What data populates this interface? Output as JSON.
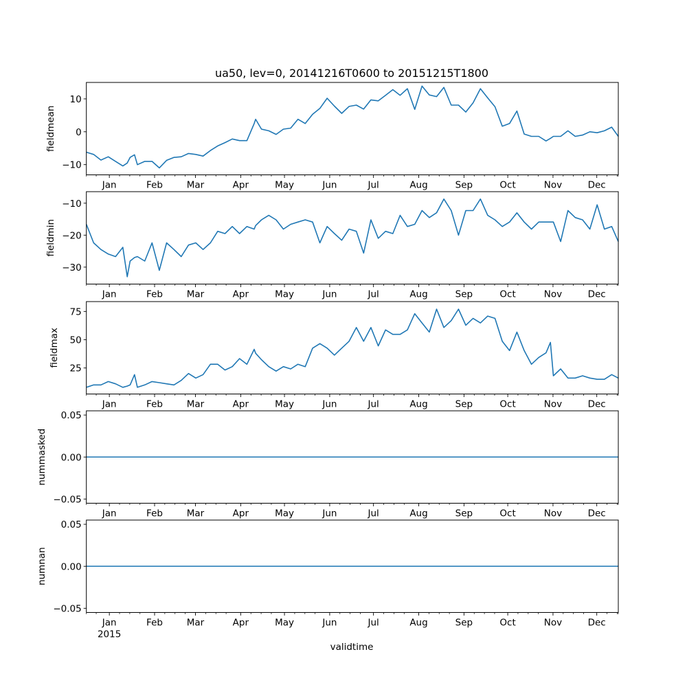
{
  "chart_data": {
    "type": "line",
    "title": "ua50, lev=0, 20141216T0600 to 20151215T1800",
    "xlabel": "validtime",
    "x_units": "days since 2014-12-16T06:00",
    "xlim": [
      0,
      364.5
    ],
    "line_color": "#1f77b4",
    "month_ticks": {
      "labels": [
        "Jan",
        "Feb",
        "Mar",
        "Apr",
        "May",
        "Jun",
        "Jul",
        "Aug",
        "Sep",
        "Oct",
        "Nov",
        "Dec"
      ],
      "days": [
        15.75,
        46.75,
        74.75,
        105.75,
        135.75,
        166.75,
        196.75,
        227.75,
        258.75,
        288.75,
        319.75,
        349.75
      ],
      "year_label": "2015"
    },
    "days": [
      0,
      5,
      10,
      15,
      20,
      25,
      28,
      30,
      33,
      35,
      40,
      45,
      50,
      55,
      60,
      65,
      70,
      75,
      80,
      85,
      90,
      95,
      100,
      105,
      110,
      115,
      116,
      120,
      125,
      130,
      135,
      140,
      145,
      150,
      155,
      160,
      165,
      170,
      175,
      180,
      185,
      190,
      195,
      200,
      205,
      210,
      215,
      220,
      225,
      230,
      235,
      240,
      245,
      250,
      255,
      260,
      265,
      270,
      275,
      280,
      285,
      290,
      295,
      300,
      305,
      310,
      315,
      318,
      320,
      325,
      330,
      335,
      340,
      345,
      350,
      355,
      360,
      364.5
    ],
    "panels": [
      {
        "ylabel": "fieldmean",
        "ylim": [
          -13.1,
          15
        ],
        "yticks": [
          {
            "value": 10,
            "label": "10"
          },
          {
            "value": 0,
            "label": "0"
          },
          {
            "value": -10,
            "label": "−10"
          }
        ],
        "values": [
          -6.2,
          -6.9,
          -8.6,
          -7.6,
          -9.0,
          -10.4,
          -9.5,
          -7.8,
          -7.0,
          -10.0,
          -9.0,
          -9.0,
          -11.0,
          -8.7,
          -7.8,
          -7.6,
          -6.6,
          -6.9,
          -7.4,
          -5.7,
          -4.3,
          -3.3,
          -2.2,
          -2.7,
          -2.7,
          2.5,
          3.8,
          0.8,
          0.3,
          -0.8,
          0.8,
          1.1,
          3.8,
          2.5,
          5.3,
          7.1,
          10.2,
          7.8,
          5.6,
          7.7,
          8.1,
          6.9,
          9.7,
          9.4,
          11.1,
          12.8,
          11.1,
          13.1,
          6.8,
          13.9,
          11.2,
          10.7,
          13.5,
          8.1,
          8.1,
          6.0,
          8.8,
          13.1,
          10.3,
          7.6,
          1.7,
          2.5,
          6.3,
          -0.7,
          -1.4,
          -1.4,
          -2.8,
          -2.0,
          -1.4,
          -1.4,
          0.3,
          -1.4,
          -1.0,
          0.0,
          -0.3,
          0.3,
          1.4,
          -1.4
        ]
      },
      {
        "ylabel": "fieldmin",
        "ylim": [
          -35.3,
          -6.4
        ],
        "yticks": [
          {
            "value": -10,
            "label": "−10"
          },
          {
            "value": -20,
            "label": "−20"
          },
          {
            "value": -30,
            "label": "−30"
          }
        ],
        "values": [
          -16.6,
          -22.4,
          -24.5,
          -25.9,
          -26.7,
          -23.8,
          -33.0,
          -28.1,
          -27.0,
          -26.7,
          -28.1,
          -22.4,
          -31.0,
          -22.4,
          -24.5,
          -26.7,
          -23.1,
          -22.4,
          -24.5,
          -22.4,
          -18.8,
          -19.5,
          -17.3,
          -19.5,
          -17.3,
          -18.1,
          -17.0,
          -15.2,
          -13.8,
          -15.2,
          -18.1,
          -16.6,
          -15.9,
          -15.2,
          -15.9,
          -22.4,
          -17.3,
          -19.5,
          -21.6,
          -18.1,
          -18.8,
          -25.6,
          -15.2,
          -21.0,
          -18.8,
          -19.5,
          -13.8,
          -17.3,
          -16.6,
          -12.3,
          -14.5,
          -13.0,
          -8.7,
          -12.3,
          -20.0,
          -12.3,
          -12.3,
          -8.7,
          -13.8,
          -15.2,
          -17.3,
          -15.9,
          -13.0,
          -15.9,
          -18.1,
          -15.9,
          -15.9,
          -15.9,
          -15.9,
          -22.0,
          -12.3,
          -14.5,
          -15.2,
          -18.1,
          -10.5,
          -18.1,
          -17.3,
          -22.0
        ]
      },
      {
        "ylabel": "fieldmax",
        "ylim": [
          2.0,
          83.7
        ],
        "yticks": [
          {
            "value": 75,
            "label": "75"
          },
          {
            "value": 50,
            "label": "50"
          },
          {
            "value": 25,
            "label": "25"
          }
        ],
        "values": [
          7.9,
          10.0,
          10.0,
          13.0,
          11.0,
          7.9,
          9.0,
          10.0,
          19.1,
          7.9,
          10.0,
          13.0,
          12.0,
          11.0,
          10.0,
          14.0,
          20.1,
          16.1,
          19.1,
          28.3,
          28.3,
          23.2,
          26.2,
          33.3,
          28.3,
          41.5,
          38.0,
          32.3,
          26.2,
          22.2,
          26.2,
          24.2,
          28.3,
          26.2,
          42.5,
          46.5,
          42.5,
          36.4,
          42.5,
          48.6,
          60.8,
          48.6,
          60.8,
          44.5,
          58.7,
          54.7,
          54.7,
          58.7,
          73.0,
          64.8,
          56.7,
          77.0,
          60.8,
          66.9,
          77.0,
          62.8,
          68.9,
          64.8,
          70.9,
          68.9,
          48.6,
          40.4,
          56.7,
          40.4,
          28.3,
          34.3,
          38.4,
          47.6,
          18.1,
          24.2,
          16.1,
          16.1,
          18.1,
          16.1,
          15.0,
          15.0,
          19.1,
          16.1
        ]
      },
      {
        "ylabel": "nummasked",
        "ylim": [
          -0.055,
          0.055
        ],
        "yticks": [
          {
            "value": 0.05,
            "label": "0.05"
          },
          {
            "value": 0,
            "label": "0.00"
          },
          {
            "value": -0.05,
            "label": "−0.05"
          }
        ],
        "constant": 0
      },
      {
        "ylabel": "numnan",
        "ylim": [
          -0.055,
          0.055
        ],
        "yticks": [
          {
            "value": 0.05,
            "label": "0.05"
          },
          {
            "value": 0,
            "label": "0.00"
          },
          {
            "value": -0.05,
            "label": "−0.05"
          }
        ],
        "constant": 0
      }
    ]
  }
}
